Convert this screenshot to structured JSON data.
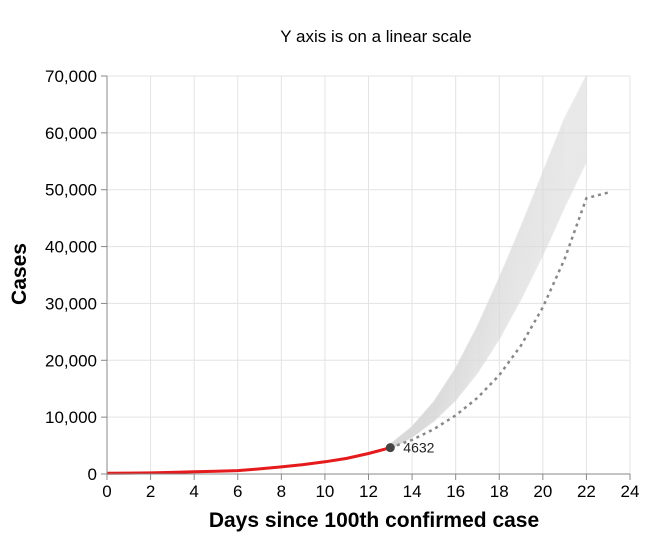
{
  "chart_data": {
    "type": "line",
    "title": "Y axis is on a linear scale",
    "xlabel": "Days since 100th confirmed case",
    "ylabel": "Cases",
    "xlim": [
      0,
      24
    ],
    "ylim": [
      0,
      70000
    ],
    "x_ticks": [
      0,
      2,
      4,
      6,
      8,
      10,
      12,
      14,
      16,
      18,
      20,
      22,
      24
    ],
    "y_ticks": [
      0,
      10000,
      20000,
      30000,
      40000,
      50000,
      60000,
      70000
    ],
    "y_tick_labels": [
      "0",
      "10,000",
      "20,000",
      "30,000",
      "40,000",
      "50,000",
      "60,000",
      "70,000"
    ],
    "grid": true,
    "colors": {
      "observed": "#e41a1c",
      "simulations": "#d9d9d9",
      "projection": "#888888",
      "last_point": "#444444"
    },
    "series": [
      {
        "x": [
          0,
          1,
          2,
          3,
          4,
          5,
          6,
          7,
          8,
          9,
          10,
          11,
          12,
          13
        ],
        "values": [
          120,
          150,
          200,
          280,
          380,
          480,
          600,
          900,
          1250,
          1650,
          2150,
          2750,
          3600,
          4632
        ]
      },
      {
        "style": "dotted",
        "x": [
          13,
          14,
          15,
          16,
          17,
          18,
          19,
          20,
          21,
          22,
          23
        ],
        "values": [
          4632,
          6000,
          7900,
          10300,
          13400,
          17400,
          22600,
          29300,
          37800,
          48500,
          49500
        ]
      }
    ],
    "simulation_band": {
      "x": [
        13,
        14,
        15,
        16,
        17,
        18,
        19,
        20,
        21,
        22
      ],
      "low": [
        4400,
        6500,
        9300,
        13000,
        17800,
        23800,
        30800,
        38500,
        47000,
        55000
      ],
      "high": [
        5200,
        8300,
        12700,
        18600,
        26000,
        34500,
        43500,
        53000,
        62500,
        70000
      ]
    },
    "annotations": [
      {
        "x": 13,
        "y": 4632,
        "text": "4632"
      }
    ]
  }
}
